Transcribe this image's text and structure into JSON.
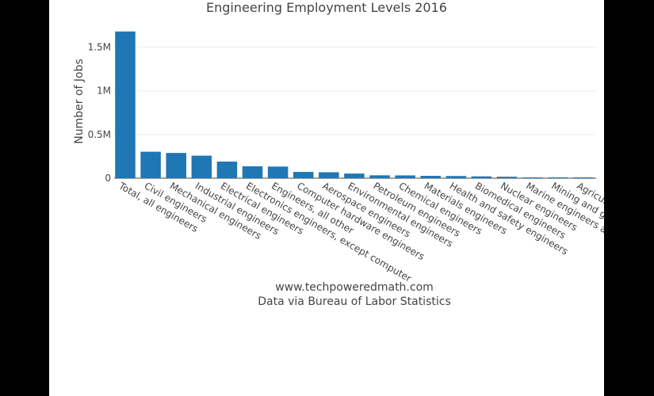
{
  "chart_data": {
    "type": "bar",
    "title": "Engineering Employment Levels 2016",
    "ylabel": "Number of Jobs",
    "xlabel_lines": [
      "www.techpoweredmath.com",
      "Data via Bureau of Labor Statistics"
    ],
    "ylim": [
      0,
      1750000
    ],
    "yticks": [
      {
        "value": 0,
        "label": "0"
      },
      {
        "value": 500000,
        "label": "0.5M"
      },
      {
        "value": 1000000,
        "label": "1M"
      },
      {
        "value": 1500000,
        "label": "1.5M"
      }
    ],
    "grid": true,
    "bar_color": "#1f77b4",
    "categories": [
      "Total, all engineers",
      "Civil engineers",
      "Mechanical engineers",
      "Industrial engineers",
      "Electrical engineers",
      "Electronics engineers, except computer",
      "Engineers, all other",
      "Computer hardware engineers",
      "Aerospace engineers",
      "Environmental engineers",
      "Petroleum engineers",
      "Chemical engineers",
      "Materials engineers",
      "Health and safety engineers",
      "Biomedical engineers",
      "Nuclear engineers",
      "Marine engineers and naval architects",
      "Mining and geological engineers",
      "Agricultural engineers"
    ],
    "values": [
      1680000,
      303000,
      289000,
      258000,
      190000,
      136000,
      133000,
      72000,
      68000,
      53000,
      33000,
      32000,
      27000,
      25000,
      21000,
      17000,
      9000,
      7000,
      2000
    ]
  }
}
